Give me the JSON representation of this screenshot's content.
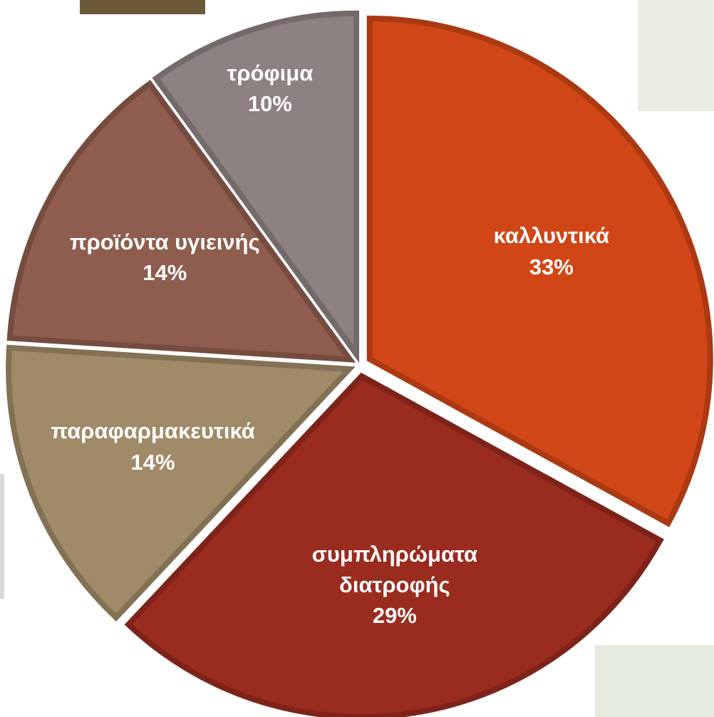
{
  "chart_data": {
    "type": "pie",
    "categories": [
      "καλλυντικά",
      "συμπληρώματα διατροφής",
      "παραφαρμακευτικά",
      "προϊόντα υγιεινής",
      "τρόφιμα"
    ],
    "values": [
      33,
      29,
      14,
      14,
      10
    ],
    "value_labels": [
      "33%",
      "29%",
      "14%",
      "14%",
      "10%"
    ],
    "colors": [
      "#d04616",
      "#9a2b1f",
      "#a08a68",
      "#8f5d4d",
      "#8d8181"
    ]
  }
}
